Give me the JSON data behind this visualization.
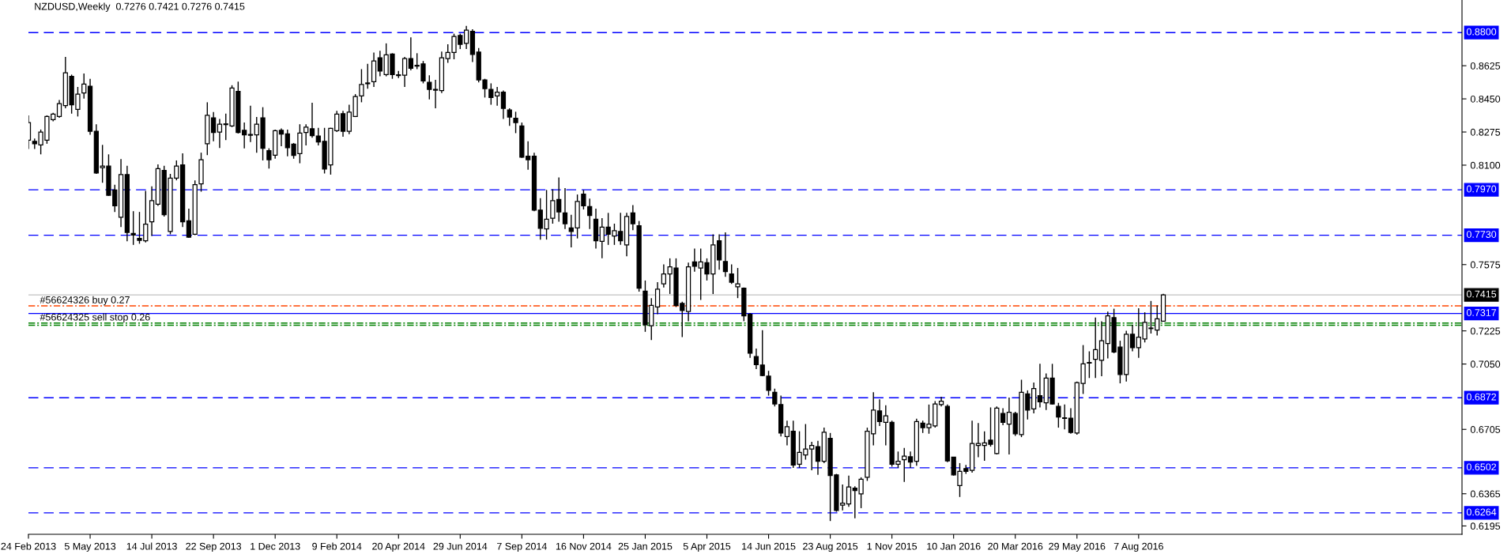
{
  "chart_data": {
    "type": "candlestick",
    "title": "NZDUSD,Weekly  0.7276 0.7421 0.7276 0.7415",
    "x": [
      "2013-02-24",
      "2013-03-03",
      "2013-03-10",
      "2013-03-17",
      "2013-03-24",
      "2013-03-31",
      "2013-04-07",
      "2013-04-14",
      "2013-04-21",
      "2013-04-28",
      "2013-05-05",
      "2013-05-12",
      "2013-05-19",
      "2013-05-26",
      "2013-06-02",
      "2013-06-09",
      "2013-06-16",
      "2013-06-23",
      "2013-06-30",
      "2013-07-07",
      "2013-07-14",
      "2013-07-21",
      "2013-07-28",
      "2013-08-04",
      "2013-08-11",
      "2013-08-18",
      "2013-08-25",
      "2013-09-01",
      "2013-09-08",
      "2013-09-15",
      "2013-09-22",
      "2013-09-29",
      "2013-10-06",
      "2013-10-13",
      "2013-10-20",
      "2013-10-27",
      "2013-11-03",
      "2013-11-10",
      "2013-11-17",
      "2013-11-24",
      "2013-12-01",
      "2013-12-08",
      "2013-12-15",
      "2013-12-22",
      "2013-12-29",
      "2014-01-05",
      "2014-01-12",
      "2014-01-19",
      "2014-01-26",
      "2014-02-02",
      "2014-02-09",
      "2014-02-16",
      "2014-02-23",
      "2014-03-02",
      "2014-03-09",
      "2014-03-16",
      "2014-03-23",
      "2014-03-30",
      "2014-04-06",
      "2014-04-13",
      "2014-04-20",
      "2014-04-27",
      "2014-05-04",
      "2014-05-11",
      "2014-05-18",
      "2014-05-25",
      "2014-06-01",
      "2014-06-08",
      "2014-06-15",
      "2014-06-22",
      "2014-06-29",
      "2014-07-06",
      "2014-07-13",
      "2014-07-20",
      "2014-07-27",
      "2014-08-03",
      "2014-08-10",
      "2014-08-17",
      "2014-08-24",
      "2014-08-31",
      "2014-09-07",
      "2014-09-14",
      "2014-09-21",
      "2014-09-28",
      "2014-10-05",
      "2014-10-12",
      "2014-10-19",
      "2014-10-26",
      "2014-11-02",
      "2014-11-09",
      "2014-11-16",
      "2014-11-23",
      "2014-11-30",
      "2014-12-07",
      "2014-12-14",
      "2014-12-21",
      "2014-12-28",
      "2015-01-04",
      "2015-01-11",
      "2015-01-18",
      "2015-01-25",
      "2015-02-01",
      "2015-02-08",
      "2015-02-15",
      "2015-02-22",
      "2015-03-01",
      "2015-03-08",
      "2015-03-15",
      "2015-03-22",
      "2015-03-29",
      "2015-04-05",
      "2015-04-12",
      "2015-04-19",
      "2015-04-26",
      "2015-05-03",
      "2015-05-10",
      "2015-05-17",
      "2015-05-24",
      "2015-05-31",
      "2015-06-07",
      "2015-06-14",
      "2015-06-21",
      "2015-06-28",
      "2015-07-05",
      "2015-07-12",
      "2015-07-19",
      "2015-07-26",
      "2015-08-02",
      "2015-08-09",
      "2015-08-16",
      "2015-08-23",
      "2015-08-30",
      "2015-09-06",
      "2015-09-13",
      "2015-09-20",
      "2015-09-27",
      "2015-10-04",
      "2015-10-11",
      "2015-10-18",
      "2015-10-25",
      "2015-11-01",
      "2015-11-08",
      "2015-11-15",
      "2015-11-22",
      "2015-11-29",
      "2015-12-06",
      "2015-12-13",
      "2015-12-20",
      "2015-12-27",
      "2016-01-03",
      "2016-01-10",
      "2016-01-17",
      "2016-01-24",
      "2016-01-31",
      "2016-02-07",
      "2016-02-14",
      "2016-02-21",
      "2016-02-28",
      "2016-03-06",
      "2016-03-13",
      "2016-03-20",
      "2016-03-27",
      "2016-04-03",
      "2016-04-10",
      "2016-04-17",
      "2016-04-24",
      "2016-05-01",
      "2016-05-08",
      "2016-05-15",
      "2016-05-22",
      "2016-05-29",
      "2016-06-05",
      "2016-06-12",
      "2016-06-19",
      "2016-06-26",
      "2016-07-03",
      "2016-07-10",
      "2016-07-17",
      "2016-07-24",
      "2016-07-31",
      "2016-08-07",
      "2016-08-14",
      "2016-08-21",
      "2016-08-28",
      "2016-09-04"
    ],
    "ohlc": [
      [
        0.8232,
        0.8363,
        0.8185,
        0.8325
      ],
      [
        0.8226,
        0.8241,
        0.8185,
        0.8213
      ],
      [
        0.8207,
        0.8288,
        0.8157,
        0.8275
      ],
      [
        0.8232,
        0.8363,
        0.8213,
        0.8357
      ],
      [
        0.834,
        0.8376,
        0.8331,
        0.8369
      ],
      [
        0.8357,
        0.8444,
        0.835,
        0.8425
      ],
      [
        0.8414,
        0.8672,
        0.84,
        0.8588
      ],
      [
        0.8569,
        0.8578,
        0.8372,
        0.8419
      ],
      [
        0.8395,
        0.8513,
        0.8357,
        0.8475
      ],
      [
        0.8481,
        0.8584,
        0.8451,
        0.8528
      ],
      [
        0.8517,
        0.8556,
        0.826,
        0.8279
      ],
      [
        0.8279,
        0.8316,
        0.8054,
        0.8059
      ],
      [
        0.8087,
        0.8207,
        0.8007,
        0.8095
      ],
      [
        0.8095,
        0.8157,
        0.7938,
        0.7941
      ],
      [
        0.7969,
        0.7997,
        0.7853,
        0.7885
      ],
      [
        0.7825,
        0.8132,
        0.7773,
        0.805
      ],
      [
        0.805,
        0.8097,
        0.7698,
        0.7745
      ],
      [
        0.7739,
        0.7857,
        0.7679,
        0.7731
      ],
      [
        0.7713,
        0.7853,
        0.7685,
        0.7703
      ],
      [
        0.7701,
        0.7964,
        0.7692,
        0.7788
      ],
      [
        0.7801,
        0.7988,
        0.7726,
        0.7913
      ],
      [
        0.7894,
        0.8104,
        0.7885,
        0.8082
      ],
      [
        0.8072,
        0.8097,
        0.7829,
        0.7838
      ],
      [
        0.775,
        0.8054,
        0.7735,
        0.8031
      ],
      [
        0.8031,
        0.8125,
        0.802,
        0.8095
      ],
      [
        0.8101,
        0.8162,
        0.7773,
        0.7801
      ],
      [
        0.7806,
        0.787,
        0.7716,
        0.772
      ],
      [
        0.7735,
        0.802,
        0.7731,
        0.7997
      ],
      [
        0.8001,
        0.8166,
        0.796,
        0.8129
      ],
      [
        0.8213,
        0.8432,
        0.8153,
        0.8363
      ],
      [
        0.835,
        0.838,
        0.8226,
        0.8273
      ],
      [
        0.8275,
        0.8344,
        0.8191,
        0.8316
      ],
      [
        0.8314,
        0.8372,
        0.8232,
        0.8318
      ],
      [
        0.8307,
        0.8522,
        0.8301,
        0.8507
      ],
      [
        0.8489,
        0.8541,
        0.8267,
        0.8273
      ],
      [
        0.8284,
        0.8325,
        0.8189,
        0.826
      ],
      [
        0.8262,
        0.8414,
        0.8222,
        0.8258
      ],
      [
        0.826,
        0.8354,
        0.8166,
        0.8316
      ],
      [
        0.835,
        0.8406,
        0.8125,
        0.8189
      ],
      [
        0.8176,
        0.8189,
        0.8082,
        0.8129
      ],
      [
        0.8153,
        0.8288,
        0.8134,
        0.8282
      ],
      [
        0.8284,
        0.8294,
        0.82,
        0.8264
      ],
      [
        0.8265,
        0.8288,
        0.8147,
        0.8192
      ],
      [
        0.8211,
        0.8217,
        0.8134,
        0.8151
      ],
      [
        0.8161,
        0.8316,
        0.811,
        0.8269
      ],
      [
        0.8273,
        0.8316,
        0.8204,
        0.8301
      ],
      [
        0.8292,
        0.8429,
        0.8245,
        0.8256
      ],
      [
        0.8254,
        0.8297,
        0.8204,
        0.8222
      ],
      [
        0.8226,
        0.8297,
        0.8056,
        0.808
      ],
      [
        0.8101,
        0.8297,
        0.805,
        0.8294
      ],
      [
        0.8282,
        0.8387,
        0.8275,
        0.8369
      ],
      [
        0.8372,
        0.8387,
        0.825,
        0.8279
      ],
      [
        0.8279,
        0.8419,
        0.8264,
        0.838
      ],
      [
        0.8357,
        0.8475,
        0.8354,
        0.8462
      ],
      [
        0.8466,
        0.8607,
        0.8432,
        0.8526
      ],
      [
        0.853,
        0.8635,
        0.8504,
        0.8534
      ],
      [
        0.8541,
        0.8695,
        0.8513,
        0.865
      ],
      [
        0.8667,
        0.8704,
        0.8569,
        0.8597
      ],
      [
        0.8578,
        0.8743,
        0.8569,
        0.8682
      ],
      [
        0.8687,
        0.8691,
        0.8556,
        0.8578
      ],
      [
        0.8577,
        0.8597,
        0.856,
        0.8573
      ],
      [
        0.8575,
        0.8672,
        0.8513,
        0.8663
      ],
      [
        0.8663,
        0.8775,
        0.8601,
        0.8612
      ],
      [
        0.8623,
        0.8691,
        0.8607,
        0.8627
      ],
      [
        0.8635,
        0.865,
        0.8532,
        0.8545
      ],
      [
        0.8537,
        0.8575,
        0.8447,
        0.85
      ],
      [
        0.85,
        0.855,
        0.84,
        0.8496
      ],
      [
        0.8494,
        0.87,
        0.8481,
        0.8667
      ],
      [
        0.8663,
        0.8738,
        0.864,
        0.8695
      ],
      [
        0.8695,
        0.8794,
        0.8659,
        0.8779
      ],
      [
        0.8785,
        0.8794,
        0.8713,
        0.8738
      ],
      [
        0.8743,
        0.8835,
        0.8713,
        0.8813
      ],
      [
        0.8807,
        0.8818,
        0.8644,
        0.8685
      ],
      [
        0.8697,
        0.8719,
        0.8537,
        0.855
      ],
      [
        0.855,
        0.8556,
        0.8457,
        0.8504
      ],
      [
        0.85,
        0.8532,
        0.8419,
        0.8457
      ],
      [
        0.8466,
        0.8513,
        0.8414,
        0.8485
      ],
      [
        0.8485,
        0.8494,
        0.8344,
        0.84
      ],
      [
        0.8391,
        0.84,
        0.8307,
        0.8354
      ],
      [
        0.8348,
        0.8382,
        0.8269,
        0.8325
      ],
      [
        0.8307,
        0.8325,
        0.8138,
        0.8142
      ],
      [
        0.8147,
        0.8226,
        0.8076,
        0.8129
      ],
      [
        0.8147,
        0.8166,
        0.7857,
        0.7863
      ],
      [
        0.7863,
        0.7926,
        0.7707,
        0.7767
      ],
      [
        0.7763,
        0.7969,
        0.7707,
        0.7814
      ],
      [
        0.782,
        0.7973,
        0.7791,
        0.7913
      ],
      [
        0.7919,
        0.8035,
        0.7801,
        0.7853
      ],
      [
        0.7848,
        0.7979,
        0.7763,
        0.7791
      ],
      [
        0.7769,
        0.7838,
        0.7666,
        0.775
      ],
      [
        0.7769,
        0.7945,
        0.7713,
        0.7908
      ],
      [
        0.7947,
        0.7969,
        0.7866,
        0.7885
      ],
      [
        0.7881,
        0.7923,
        0.7763,
        0.7834
      ],
      [
        0.7814,
        0.787,
        0.766,
        0.7701
      ],
      [
        0.7698,
        0.782,
        0.7608,
        0.7773
      ],
      [
        0.7773,
        0.7848,
        0.7679,
        0.7735
      ],
      [
        0.7726,
        0.7791,
        0.7679,
        0.7754
      ],
      [
        0.775,
        0.7848,
        0.7679,
        0.7701
      ],
      [
        0.7679,
        0.7848,
        0.7619,
        0.7829
      ],
      [
        0.7848,
        0.7889,
        0.7757,
        0.7791
      ],
      [
        0.778,
        0.7805,
        0.7432,
        0.745
      ],
      [
        0.7435,
        0.7491,
        0.722,
        0.7257
      ],
      [
        0.7252,
        0.7398,
        0.7177,
        0.736
      ],
      [
        0.7351,
        0.7482,
        0.7313,
        0.7445
      ],
      [
        0.7473,
        0.7576,
        0.7454,
        0.7525
      ],
      [
        0.7525,
        0.7608,
        0.742,
        0.7563
      ],
      [
        0.7557,
        0.7608,
        0.7351,
        0.736
      ],
      [
        0.737,
        0.7379,
        0.7192,
        0.7332
      ],
      [
        0.7327,
        0.7585,
        0.7276,
        0.7563
      ],
      [
        0.7589,
        0.766,
        0.7538,
        0.7566
      ],
      [
        0.7557,
        0.766,
        0.7388,
        0.7589
      ],
      [
        0.7585,
        0.7608,
        0.7491,
        0.7525
      ],
      [
        0.7525,
        0.7735,
        0.742,
        0.7679
      ],
      [
        0.7701,
        0.7735,
        0.7548,
        0.76
      ],
      [
        0.7591,
        0.7745,
        0.751,
        0.7538
      ],
      [
        0.7525,
        0.7576,
        0.7473,
        0.7482
      ],
      [
        0.7458,
        0.7557,
        0.7398,
        0.7473
      ],
      [
        0.745,
        0.7454,
        0.7276,
        0.7304
      ],
      [
        0.7313,
        0.7319,
        0.7083,
        0.7107
      ],
      [
        0.7089,
        0.7132,
        0.7023,
        0.7047
      ],
      [
        0.7045,
        0.7229,
        0.6986,
        0.6989
      ],
      [
        0.6986,
        0.7014,
        0.6883,
        0.6911
      ],
      [
        0.6901,
        0.692,
        0.6826,
        0.6839
      ],
      [
        0.6836,
        0.6883,
        0.6667,
        0.6686
      ],
      [
        0.6667,
        0.6751,
        0.662,
        0.6719
      ],
      [
        0.6695,
        0.6751,
        0.6502,
        0.6517
      ],
      [
        0.6521,
        0.6695,
        0.6502,
        0.6583
      ],
      [
        0.657,
        0.6733,
        0.6545,
        0.6601
      ],
      [
        0.6601,
        0.6639,
        0.6489,
        0.662
      ],
      [
        0.6614,
        0.6644,
        0.6465,
        0.6536
      ],
      [
        0.6536,
        0.6714,
        0.6527,
        0.669
      ],
      [
        0.6658,
        0.6686,
        0.6221,
        0.6461
      ],
      [
        0.6465,
        0.647,
        0.627,
        0.6277
      ],
      [
        0.6305,
        0.6414,
        0.6277,
        0.6315
      ],
      [
        0.6311,
        0.6461,
        0.6296,
        0.6401
      ],
      [
        0.6395,
        0.6405,
        0.6236,
        0.6382
      ],
      [
        0.6364,
        0.6452,
        0.6289,
        0.6442
      ],
      [
        0.6452,
        0.6714,
        0.6433,
        0.6695
      ],
      [
        0.6682,
        0.6901,
        0.662,
        0.6807
      ],
      [
        0.6802,
        0.6864,
        0.6723,
        0.6746
      ],
      [
        0.6742,
        0.6832,
        0.662,
        0.6776
      ],
      [
        0.6742,
        0.6751,
        0.6508,
        0.6521
      ],
      [
        0.6521,
        0.6588,
        0.6502,
        0.6536
      ],
      [
        0.6545,
        0.6607,
        0.6427,
        0.6564
      ],
      [
        0.656,
        0.6588,
        0.6502,
        0.6532
      ],
      [
        0.6536,
        0.6761,
        0.6513,
        0.6746
      ],
      [
        0.6738,
        0.6751,
        0.6686,
        0.6714
      ],
      [
        0.6714,
        0.6836,
        0.6682,
        0.6733
      ],
      [
        0.6723,
        0.6854,
        0.6714,
        0.6839
      ],
      [
        0.6836,
        0.6877,
        0.6826,
        0.6854
      ],
      [
        0.6826,
        0.6836,
        0.6532,
        0.6539
      ],
      [
        0.6558,
        0.6558,
        0.6461,
        0.6465
      ],
      [
        0.6408,
        0.6527,
        0.6348,
        0.6483
      ],
      [
        0.6498,
        0.6517,
        0.647,
        0.6483
      ],
      [
        0.6489,
        0.6751,
        0.6476,
        0.663
      ],
      [
        0.662,
        0.6738,
        0.6558,
        0.663
      ],
      [
        0.662,
        0.6695,
        0.6539,
        0.6633
      ],
      [
        0.6648,
        0.6821,
        0.6614,
        0.6626
      ],
      [
        0.6577,
        0.6826,
        0.6573,
        0.6817
      ],
      [
        0.6789,
        0.6817,
        0.6727,
        0.6742
      ],
      [
        0.6733,
        0.6873,
        0.6573,
        0.6795
      ],
      [
        0.6789,
        0.6798,
        0.6671,
        0.6682
      ],
      [
        0.6677,
        0.6967,
        0.6664,
        0.6901
      ],
      [
        0.6892,
        0.6911,
        0.6757,
        0.6807
      ],
      [
        0.6813,
        0.6952,
        0.6789,
        0.692
      ],
      [
        0.6883,
        0.7051,
        0.6821,
        0.6851
      ],
      [
        0.6845,
        0.7,
        0.6807,
        0.6976
      ],
      [
        0.6976,
        0.7051,
        0.6836,
        0.6839
      ],
      [
        0.6826,
        0.6845,
        0.6714,
        0.677
      ],
      [
        0.6766,
        0.6836,
        0.6705,
        0.6763
      ],
      [
        0.6764,
        0.6817,
        0.6682,
        0.6689
      ],
      [
        0.6686,
        0.6957,
        0.6677,
        0.6952
      ],
      [
        0.6948,
        0.715,
        0.6892,
        0.7051
      ],
      [
        0.7055,
        0.7117,
        0.6976,
        0.7058
      ],
      [
        0.7075,
        0.7295,
        0.6976,
        0.7126
      ],
      [
        0.707,
        0.7276,
        0.6986,
        0.7173
      ],
      [
        0.7158,
        0.7327,
        0.7079,
        0.7304
      ],
      [
        0.7295,
        0.7342,
        0.7107,
        0.7113
      ],
      [
        0.7139,
        0.7173,
        0.6948,
        0.6995
      ],
      [
        0.6995,
        0.7226,
        0.6957,
        0.7207
      ],
      [
        0.7207,
        0.7257,
        0.7117,
        0.7136
      ],
      [
        0.7136,
        0.7345,
        0.7083,
        0.7192
      ],
      [
        0.7182,
        0.7323,
        0.7164,
        0.727
      ],
      [
        0.724,
        0.7383,
        0.7211,
        0.7237
      ],
      [
        0.7229,
        0.736,
        0.7201,
        0.7289
      ],
      [
        0.7276,
        0.7421,
        0.7276,
        0.7415
      ]
    ],
    "xlim": [
      "2013-02-24",
      "2017-08-09"
    ],
    "xticks": [
      {
        "value": "2013-02-24",
        "label": "24 Feb 2013"
      },
      {
        "value": "2013-05-05",
        "label": "5 May 2013"
      },
      {
        "value": "2013-07-14",
        "label": "14 Jul 2013"
      },
      {
        "value": "2013-09-22",
        "label": "22 Sep 2013"
      },
      {
        "value": "2013-12-01",
        "label": "1 Dec 2013"
      },
      {
        "value": "2014-02-09",
        "label": "9 Feb 2014"
      },
      {
        "value": "2014-04-20",
        "label": "20 Apr 2014"
      },
      {
        "value": "2014-06-29",
        "label": "29 Jun 2014"
      },
      {
        "value": "2014-09-07",
        "label": "7 Sep 2014"
      },
      {
        "value": "2014-11-16",
        "label": "16 Nov 2014"
      },
      {
        "value": "2015-01-25",
        "label": "25 Jan 2015"
      },
      {
        "value": "2015-04-05",
        "label": "5 Apr 2015"
      },
      {
        "value": "2015-06-14",
        "label": "14 Jun 2015"
      },
      {
        "value": "2015-08-23",
        "label": "23 Aug 2015"
      },
      {
        "value": "2015-11-01",
        "label": "1 Nov 2015"
      },
      {
        "value": "2016-01-10",
        "label": "10 Jan 2016"
      },
      {
        "value": "2016-03-20",
        "label": "20 Mar 2016"
      },
      {
        "value": "2016-05-29",
        "label": "29 May 2016"
      },
      {
        "value": "2016-08-07",
        "label": "7 Aug 2016"
      }
    ],
    "ylim": [
      0.6151,
      0.8972
    ],
    "yticks": [
      {
        "value": 0.6195,
        "label": "0.6195"
      },
      {
        "value": 0.6365,
        "label": "0.6365"
      },
      {
        "value": 0.6705,
        "label": "0.6705"
      },
      {
        "value": 0.705,
        "label": "0.7050"
      },
      {
        "value": 0.7225,
        "label": "0.7225"
      },
      {
        "value": 0.7575,
        "label": "0.7575"
      },
      {
        "value": 0.81,
        "label": "0.8100"
      },
      {
        "value": 0.8275,
        "label": "0.8275"
      },
      {
        "value": 0.845,
        "label": "0.8450"
      },
      {
        "value": 0.8625,
        "label": "0.8625"
      }
    ],
    "ref_lines": [
      {
        "axis": "y",
        "value": 0.88,
        "label": "0.8800",
        "color": "#0000ff",
        "line_style": "dashed"
      },
      {
        "axis": "y",
        "value": 0.797,
        "label": "0.7970",
        "color": "#0000ff",
        "line_style": "dashed"
      },
      {
        "axis": "y",
        "value": 0.773,
        "label": "0.7730",
        "color": "#0000ff",
        "line_style": "dashed"
      },
      {
        "axis": "y",
        "value": 0.7415,
        "label": "0.7415",
        "color": "#c0c0c0",
        "line_style": "solid"
      },
      {
        "axis": "y",
        "value": 0.7357,
        "label": "#56624326 buy 0.27",
        "color": "#ff4500",
        "line_style": "dashdot"
      },
      {
        "axis": "y",
        "value": 0.7317,
        "label": "0.7317",
        "color": "#0000ff",
        "line_style": "solid"
      },
      {
        "axis": "y",
        "value": 0.7266,
        "label": "#56624325 sell stop 0.26",
        "color": "#008000",
        "line_style": "dashdot"
      },
      {
        "axis": "y",
        "value": 0.7255,
        "color": "#008000",
        "line_style": "dashdot"
      },
      {
        "axis": "y",
        "value": 0.6872,
        "label": "0.6872",
        "color": "#0000ff",
        "line_style": "dashed"
      },
      {
        "axis": "y",
        "value": 0.6502,
        "label": "0.6502",
        "color": "#0000ff",
        "line_style": "dashed"
      },
      {
        "axis": "y",
        "value": 0.6264,
        "label": "0.6264",
        "color": "#0000ff",
        "line_style": "dashed"
      }
    ]
  }
}
